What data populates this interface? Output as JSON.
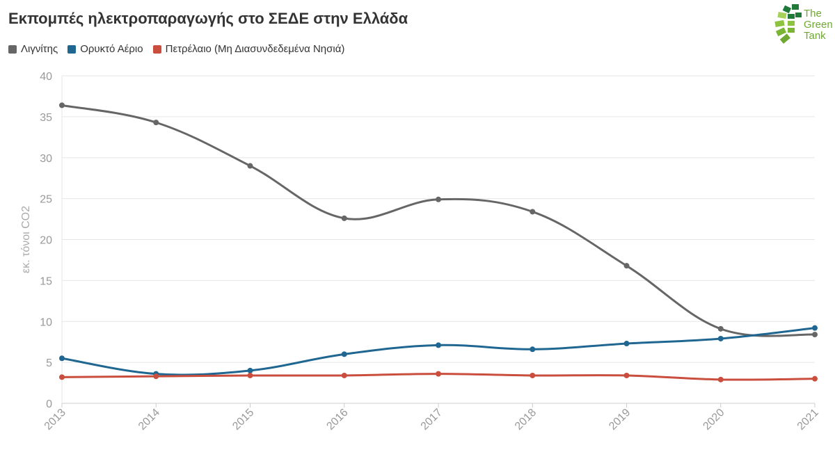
{
  "title": "Εκπομπές ηλεκτροπαραγωγής στο ΣΕΔΕ στην Ελλάδα",
  "logo": {
    "name": "green-tank-logo",
    "lines": [
      "The",
      "Green",
      "Tank"
    ],
    "color": "#6fa832"
  },
  "chart_data": {
    "type": "line",
    "title": "Εκπομπές ηλεκτροπαραγωγής στο ΣΕΔΕ στην Ελλάδα",
    "xlabel": "",
    "ylabel": "εκ. τόνοι CO2",
    "x": [
      "2013",
      "2014",
      "2015",
      "2016",
      "2017",
      "2018",
      "2019",
      "2020",
      "2021"
    ],
    "ylim": [
      0,
      40
    ],
    "yticks": [
      0,
      5,
      10,
      15,
      20,
      25,
      30,
      35,
      40
    ],
    "grid": true,
    "legend_position": "top-left",
    "series": [
      {
        "name": "Λιγνίτης",
        "color": "#666666",
        "values": [
          36.4,
          34.3,
          29.0,
          22.6,
          24.9,
          23.4,
          16.8,
          9.1,
          8.4
        ]
      },
      {
        "name": "Ορυκτό Αέριο",
        "color": "#1f6691",
        "values": [
          5.5,
          3.6,
          4.0,
          6.0,
          7.1,
          6.6,
          7.3,
          7.9,
          9.2
        ]
      },
      {
        "name": "Πετρέλαιο (Μη Διασυνδεδεμένα Νησιά)",
        "color": "#c94e3e",
        "values": [
          3.2,
          3.3,
          3.4,
          3.4,
          3.6,
          3.4,
          3.4,
          2.9,
          3.0
        ]
      }
    ]
  }
}
